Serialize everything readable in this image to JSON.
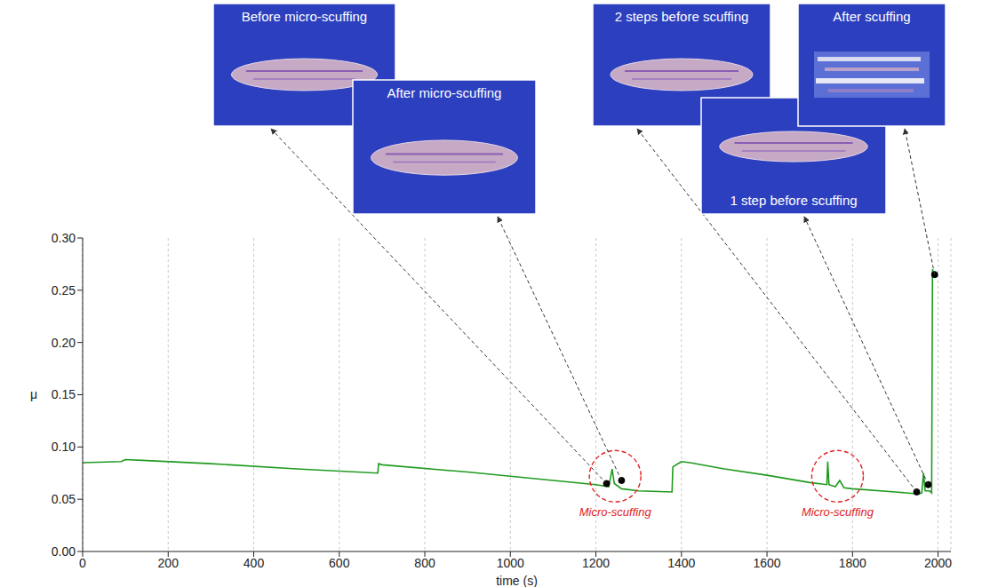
{
  "chart_data": {
    "type": "line",
    "x_label": "time (s)",
    "y_label": "μ",
    "color": "#1f9a1f",
    "xlim": [
      0,
      2030
    ],
    "ylim": [
      0,
      0.3
    ],
    "xticks": [
      0,
      200,
      400,
      600,
      800,
      1000,
      1200,
      1400,
      1600,
      1800,
      2000
    ],
    "yticks": [
      {
        "value": 0,
        "label": "0.00"
      },
      {
        "value": 0.05,
        "label": "0.05"
      },
      {
        "value": 0.1,
        "label": "0.10"
      },
      {
        "value": 0.15,
        "label": "0.15"
      },
      {
        "value": 0.2,
        "label": "0.20"
      },
      {
        "value": 0.25,
        "label": "0.25"
      },
      {
        "value": 0.3,
        "label": "0.30"
      }
    ],
    "grid": true,
    "x": [
      0,
      90,
      100,
      150,
      300,
      500,
      690,
      692,
      700,
      900,
      1100,
      1200,
      1230,
      1238,
      1243,
      1260,
      1300,
      1378,
      1380,
      1400,
      1420,
      1500,
      1600,
      1700,
      1740,
      1742,
      1745,
      1760,
      1770,
      1780,
      1800,
      1900,
      1955,
      1962,
      1966,
      1970,
      1980,
      1985,
      1987,
      1990
    ],
    "values": [
      0.085,
      0.086,
      0.088,
      0.087,
      0.084,
      0.079,
      0.075,
      0.084,
      0.083,
      0.076,
      0.068,
      0.064,
      0.062,
      0.079,
      0.065,
      0.06,
      0.058,
      0.057,
      0.081,
      0.086,
      0.085,
      0.079,
      0.073,
      0.066,
      0.064,
      0.086,
      0.064,
      0.062,
      0.068,
      0.061,
      0.06,
      0.057,
      0.055,
      0.056,
      0.075,
      0.058,
      0.058,
      0.056,
      0.27,
      0.265
    ],
    "annotations": [
      {
        "text": "Before micro-scuffing",
        "x": 1225,
        "y": 0.065
      },
      {
        "text": "After micro-scuffing",
        "x": 1260,
        "y": 0.068
      },
      {
        "text": "2 steps before scuffing",
        "x": 1950,
        "y": 0.057
      },
      {
        "text": "1 step before scuffing",
        "x": 1977,
        "y": 0.064
      },
      {
        "text": "After scuffing",
        "x": 1992,
        "y": 0.265
      }
    ],
    "regions": [
      {
        "text": "Micro-scuffing",
        "x": 1245,
        "y": 0.072
      },
      {
        "text": "Micro-scuffing",
        "x": 1765,
        "y": 0.072
      }
    ]
  }
}
